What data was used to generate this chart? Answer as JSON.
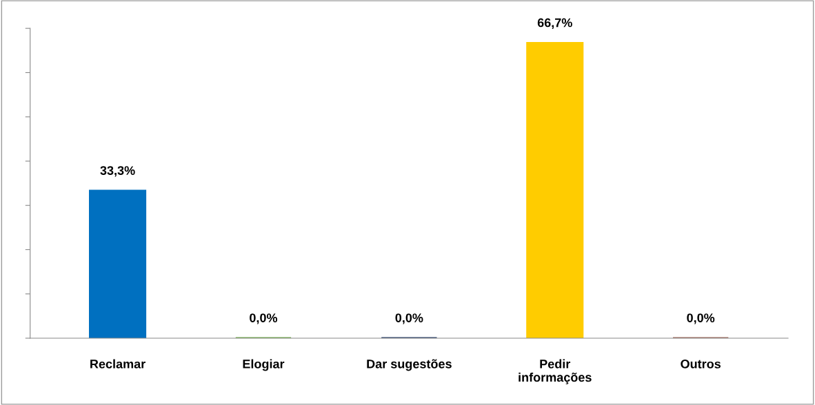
{
  "chart_data": {
    "type": "bar",
    "categories": [
      "Reclamar",
      "Elogiar",
      "Dar sugestões",
      "Pedir\ninformações",
      "Outros"
    ],
    "values": [
      33.3,
      0.0,
      0.0,
      66.7,
      0.0
    ],
    "colors": [
      "#0070c0",
      "#70ad47",
      "#1f3864",
      "#ffcc00",
      "#a0665a"
    ],
    "value_labels": [
      "33,3%",
      "0,0%",
      "0,0%",
      "66,7%",
      "0,0%"
    ],
    "ylim": [
      0,
      70
    ],
    "yticks": [
      {
        "value": 0,
        "label": null
      },
      {
        "value": 10,
        "label": null
      },
      {
        "value": 20,
        "label": null
      },
      {
        "value": 30,
        "label": null
      },
      {
        "value": 40,
        "label": null
      },
      {
        "value": 50,
        "label": null
      },
      {
        "value": 60,
        "label": null
      },
      {
        "value": 70,
        "label": null
      }
    ],
    "tick_labels": "x"
  }
}
